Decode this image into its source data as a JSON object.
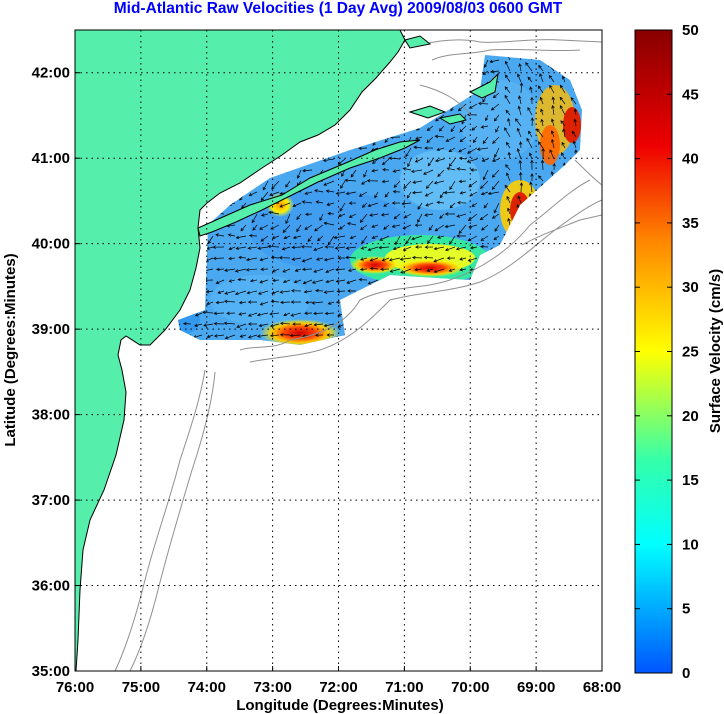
{
  "title": "Mid-Atlantic Raw Velocities (1 Day Avg) 2009/08/03 0600 GMT",
  "map": {
    "xlabel": "Longitude (Degrees:Minutes)",
    "ylabel": "Latitude (Degrees:Minutes)",
    "x_ticks": [
      "76:00",
      "75:00",
      "74:00",
      "73:00",
      "72:00",
      "71:00",
      "70:00",
      "69:00",
      "68:00"
    ],
    "y_ticks": [
      "42:00",
      "41:00",
      "40:00",
      "39:00",
      "38:00",
      "37:00",
      "36:00",
      "35:00"
    ],
    "lon_range": [
      -76,
      -68
    ],
    "lat_range": [
      35,
      42.5
    ],
    "grid": "dotted",
    "land_color": "#55eeaa",
    "bathymetry_color": "#909090",
    "arrow_color": "#000000"
  },
  "colorbar": {
    "label": "Surface Velocity (cm/s)",
    "ticks": [
      "50",
      "45",
      "40",
      "35",
      "30",
      "25",
      "20",
      "15",
      "10",
      "5",
      "0"
    ],
    "range": [
      0,
      50
    ],
    "colors": [
      "#0055ff",
      "#00ffff",
      "#33ffaa",
      "#ffff00",
      "#ff8800",
      "#ee0000",
      "#880000"
    ]
  }
}
